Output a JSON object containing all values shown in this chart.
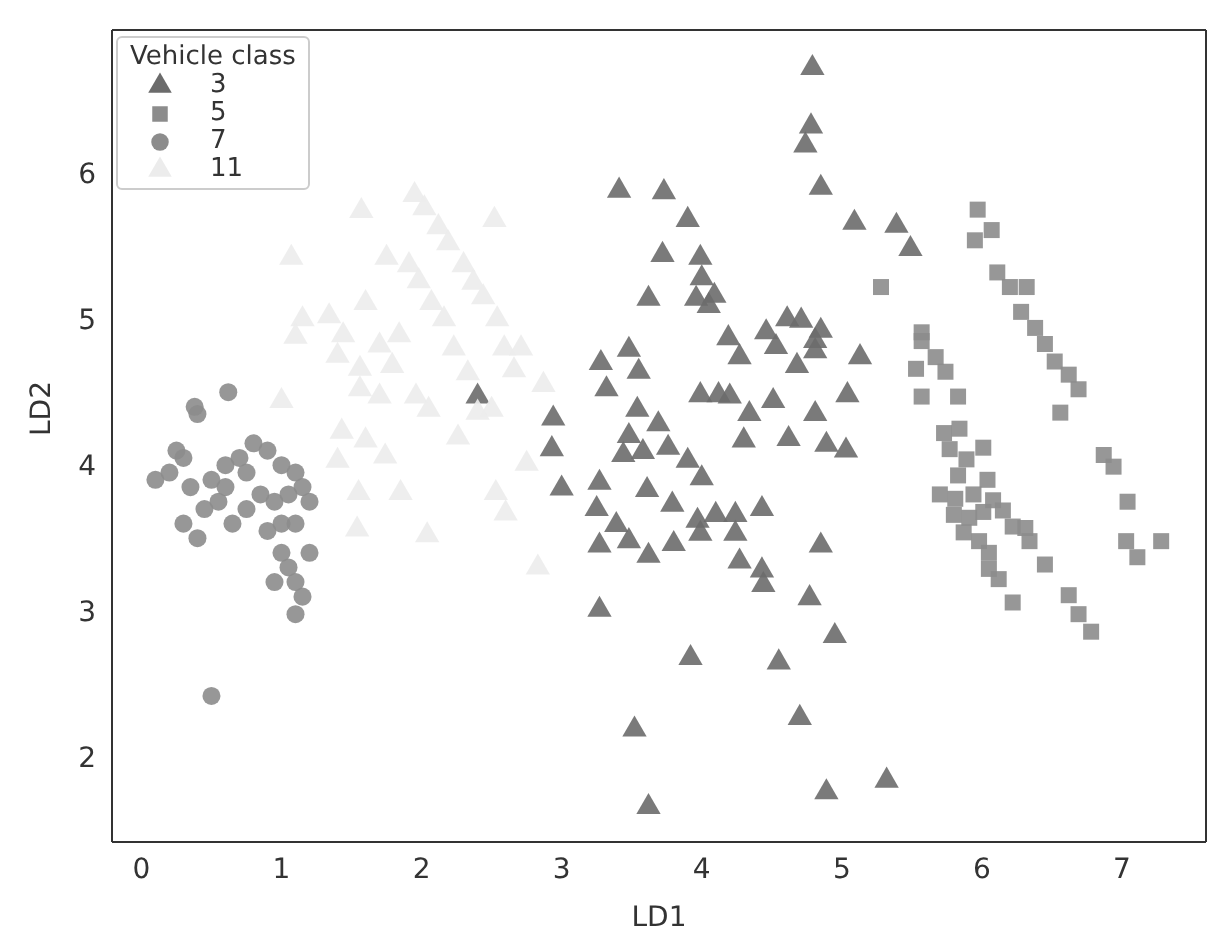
{
  "chart_data": {
    "type": "scatter",
    "xlabel": "LD1",
    "ylabel": "LD2",
    "legend_title": "Vehicle class",
    "legend": "top left",
    "xlim": [
      -0.21,
      7.6
    ],
    "ylim": [
      1.42,
      6.98
    ],
    "xticks": [
      0,
      1,
      2,
      3,
      4,
      5,
      6,
      7
    ],
    "yticks": [
      2,
      3,
      4,
      5,
      6
    ],
    "series": [
      {
        "name": "3",
        "color": "#6b6b6b",
        "marker": "triangle",
        "x": [
          4.79,
          4.78,
          4.74,
          4.85,
          3.41,
          3.73,
          3.9,
          5.09,
          5.39,
          5.49,
          3.72,
          3.99,
          4.0,
          3.62,
          3.96,
          4.09,
          4.05,
          4.61,
          4.71,
          4.85,
          4.46,
          4.19,
          4.81,
          4.53,
          5.13,
          4.27,
          4.81,
          3.48,
          3.28,
          4.68,
          3.55,
          3.32,
          3.99,
          4.12,
          4.2,
          4.51,
          5.04,
          3.54,
          4.34,
          4.81,
          3.69,
          3.48,
          3.76,
          3.44,
          3.58,
          4.3,
          4.62,
          4.89,
          5.03,
          3.9,
          4.0,
          3.27,
          3.0,
          3.61,
          3.25,
          3.79,
          4.43,
          3.97,
          4.1,
          4.24,
          3.39,
          3.48,
          3.27,
          3.62,
          3.8,
          3.99,
          4.24,
          4.27,
          4.43,
          4.44,
          4.85,
          3.27,
          4.77,
          4.95,
          3.92,
          4.55,
          4.7,
          3.52,
          4.89,
          5.32,
          3.62,
          2.4,
          2.94,
          2.93
        ],
        "values": [
          6.72,
          6.32,
          6.19,
          5.9,
          5.88,
          5.87,
          5.68,
          5.66,
          5.64,
          5.48,
          5.44,
          5.42,
          5.28,
          5.14,
          5.14,
          5.16,
          5.09,
          5.0,
          4.99,
          4.92,
          4.91,
          4.87,
          4.85,
          4.81,
          4.74,
          4.74,
          4.78,
          4.79,
          4.7,
          4.68,
          4.64,
          4.52,
          4.48,
          4.48,
          4.47,
          4.44,
          4.48,
          4.38,
          4.35,
          4.35,
          4.28,
          4.2,
          4.12,
          4.07,
          4.09,
          4.17,
          4.18,
          4.14,
          4.1,
          4.03,
          3.91,
          3.88,
          3.84,
          3.83,
          3.7,
          3.73,
          3.7,
          3.62,
          3.66,
          3.66,
          3.59,
          3.48,
          3.45,
          3.38,
          3.46,
          3.53,
          3.53,
          3.34,
          3.28,
          3.18,
          3.45,
          3.01,
          3.09,
          2.83,
          2.68,
          2.65,
          2.27,
          2.19,
          1.76,
          1.84,
          1.66,
          4.47,
          4.32,
          4.11
        ]
      },
      {
        "name": "5",
        "color": "#8c8c8c",
        "marker": "square",
        "x": [
          5.97,
          6.07,
          5.95,
          5.28,
          6.11,
          6.2,
          6.32,
          6.28,
          6.38,
          6.45,
          6.52,
          6.62,
          6.69,
          6.56,
          5.57,
          5.57,
          5.67,
          5.53,
          5.74,
          5.57,
          5.83,
          6.87,
          6.94,
          7.04,
          7.03,
          7.11,
          7.28,
          5.73,
          5.84,
          6.01,
          5.77,
          5.89,
          5.83,
          6.04,
          5.7,
          5.81,
          5.94,
          6.08,
          6.15,
          5.8,
          5.91,
          6.01,
          5.87,
          5.98,
          6.22,
          6.31,
          6.34,
          6.05,
          6.45,
          6.05,
          6.12,
          6.22,
          6.62,
          6.69,
          6.78
        ],
        "values": [
          5.75,
          5.61,
          5.54,
          5.22,
          5.32,
          5.22,
          5.22,
          5.05,
          4.94,
          4.83,
          4.71,
          4.62,
          4.52,
          4.36,
          4.91,
          4.85,
          4.74,
          4.66,
          4.64,
          4.47,
          4.47,
          4.07,
          3.99,
          3.75,
          3.48,
          3.37,
          3.48,
          4.22,
          4.25,
          4.12,
          4.11,
          4.04,
          3.93,
          3.9,
          3.8,
          3.77,
          3.8,
          3.76,
          3.69,
          3.66,
          3.64,
          3.68,
          3.54,
          3.48,
          3.58,
          3.57,
          3.48,
          3.4,
          3.32,
          3.29,
          3.22,
          3.06,
          3.11,
          2.98,
          2.86
        ]
      },
      {
        "name": "7",
        "color": "#8c8c8c",
        "marker": "circle",
        "x": [
          0.4,
          0.38,
          0.62,
          0.2,
          0.1,
          0.25,
          0.35,
          0.45,
          0.3,
          0.5,
          0.6,
          0.7,
          0.8,
          0.9,
          1.0,
          1.1,
          0.55,
          0.65,
          0.75,
          0.85,
          0.95,
          1.05,
          1.15,
          1.2,
          1.1,
          0.4,
          0.9,
          1.0,
          1.05,
          0.95,
          1.1,
          1.2,
          1.15,
          1.1,
          0.5,
          0.6,
          0.3,
          1.0,
          0.75
        ],
        "values": [
          4.35,
          4.4,
          4.5,
          3.95,
          3.9,
          4.1,
          3.85,
          3.7,
          3.6,
          3.9,
          4.0,
          4.05,
          4.15,
          4.1,
          4.0,
          3.95,
          3.75,
          3.6,
          3.7,
          3.8,
          3.75,
          3.8,
          3.85,
          3.75,
          3.6,
          3.5,
          3.55,
          3.4,
          3.3,
          3.2,
          3.2,
          3.4,
          3.1,
          2.98,
          2.42,
          3.85,
          4.05,
          3.6,
          3.95
        ]
      },
      {
        "name": "11",
        "color": "#ececec",
        "marker": "triangle",
        "x": [
          1.95,
          1.57,
          2.52,
          1.07,
          2.02,
          2.12,
          2.19,
          1.75,
          1.91,
          1.98,
          2.3,
          2.37,
          2.44,
          1.6,
          2.07,
          2.16,
          2.54,
          1.15,
          1.34,
          1.44,
          1.84,
          1.7,
          1.1,
          2.23,
          2.59,
          2.71,
          1.56,
          1.79,
          1.4,
          2.33,
          2.66,
          1.56,
          1.7,
          1.96,
          1.0,
          2.05,
          2.5,
          2.87,
          1.43,
          1.6,
          1.74,
          2.26,
          2.4,
          1.4,
          1.55,
          1.85,
          2.53,
          2.6,
          2.04,
          1.54,
          2.75,
          2.83
        ],
        "values": [
          5.85,
          5.74,
          5.68,
          5.42,
          5.76,
          5.63,
          5.52,
          5.42,
          5.37,
          5.26,
          5.37,
          5.25,
          5.15,
          5.11,
          5.11,
          5.0,
          5.0,
          5.0,
          5.02,
          4.89,
          4.89,
          4.82,
          4.88,
          4.8,
          4.8,
          4.8,
          4.66,
          4.68,
          4.75,
          4.63,
          4.65,
          4.52,
          4.47,
          4.47,
          4.44,
          4.38,
          4.38,
          4.55,
          4.23,
          4.17,
          4.06,
          4.19,
          4.36,
          4.03,
          3.81,
          3.81,
          3.81,
          3.67,
          3.52,
          3.56,
          4.01,
          3.3
        ]
      }
    ]
  }
}
